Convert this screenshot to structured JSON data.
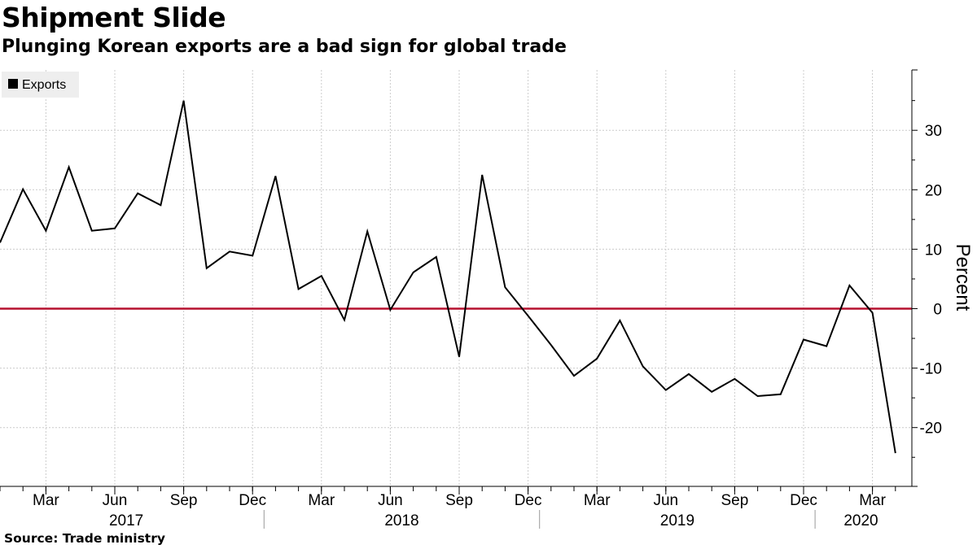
{
  "title": "Shipment Slide",
  "subtitle": "Plunging Korean exports are a bad sign for global trade",
  "source": "Source: Trade ministry",
  "colors": {
    "line": "#000000",
    "zero_line": "#b5102e",
    "grid": "#cccccc",
    "legend_bg": "#eeeeee"
  },
  "chart_data": {
    "type": "line",
    "title": "Shipment Slide",
    "subtitle": "Plunging Korean exports are a bad sign for global trade",
    "ylabel": "Percent",
    "xlabel": "",
    "ylim": [
      -30,
      40
    ],
    "yticks": [
      30,
      20,
      10,
      0,
      -10,
      -20
    ],
    "grid": true,
    "legend_position": "top-left",
    "x_tick_labels": [
      "Mar",
      "Jun",
      "Sep",
      "Dec",
      "Mar",
      "Jun",
      "Sep",
      "Dec",
      "Mar",
      "Jun",
      "Sep",
      "Dec",
      "Mar"
    ],
    "year_labels": [
      "2017",
      "2018",
      "2019",
      "2020"
    ],
    "series": [
      {
        "name": "Exports",
        "color": "#000000",
        "x": [
          "2017-01",
          "2017-02",
          "2017-03",
          "2017-04",
          "2017-05",
          "2017-06",
          "2017-07",
          "2017-08",
          "2017-09",
          "2017-10",
          "2017-11",
          "2017-12",
          "2018-01",
          "2018-02",
          "2018-03",
          "2018-04",
          "2018-05",
          "2018-06",
          "2018-07",
          "2018-08",
          "2018-09",
          "2018-10",
          "2018-11",
          "2018-12",
          "2019-01",
          "2019-02",
          "2019-03",
          "2019-04",
          "2019-05",
          "2019-06",
          "2019-07",
          "2019-08",
          "2019-09",
          "2019-10",
          "2019-11",
          "2019-12",
          "2020-01",
          "2020-02",
          "2020-03",
          "2020-04"
        ],
        "values": [
          11.1,
          20.1,
          13.1,
          23.8,
          13.1,
          13.5,
          19.4,
          17.4,
          35.0,
          6.8,
          9.6,
          8.9,
          22.3,
          3.3,
          5.5,
          -1.9,
          13.0,
          -0.2,
          6.1,
          8.7,
          -8.1,
          22.5,
          3.6,
          -1.2,
          -6.1,
          -11.3,
          -8.4,
          -2.0,
          -9.7,
          -13.7,
          -11.0,
          -14.0,
          -11.8,
          -14.7,
          -14.4,
          -5.2,
          -6.3,
          3.9,
          -0.7,
          -24.3
        ]
      }
    ]
  }
}
